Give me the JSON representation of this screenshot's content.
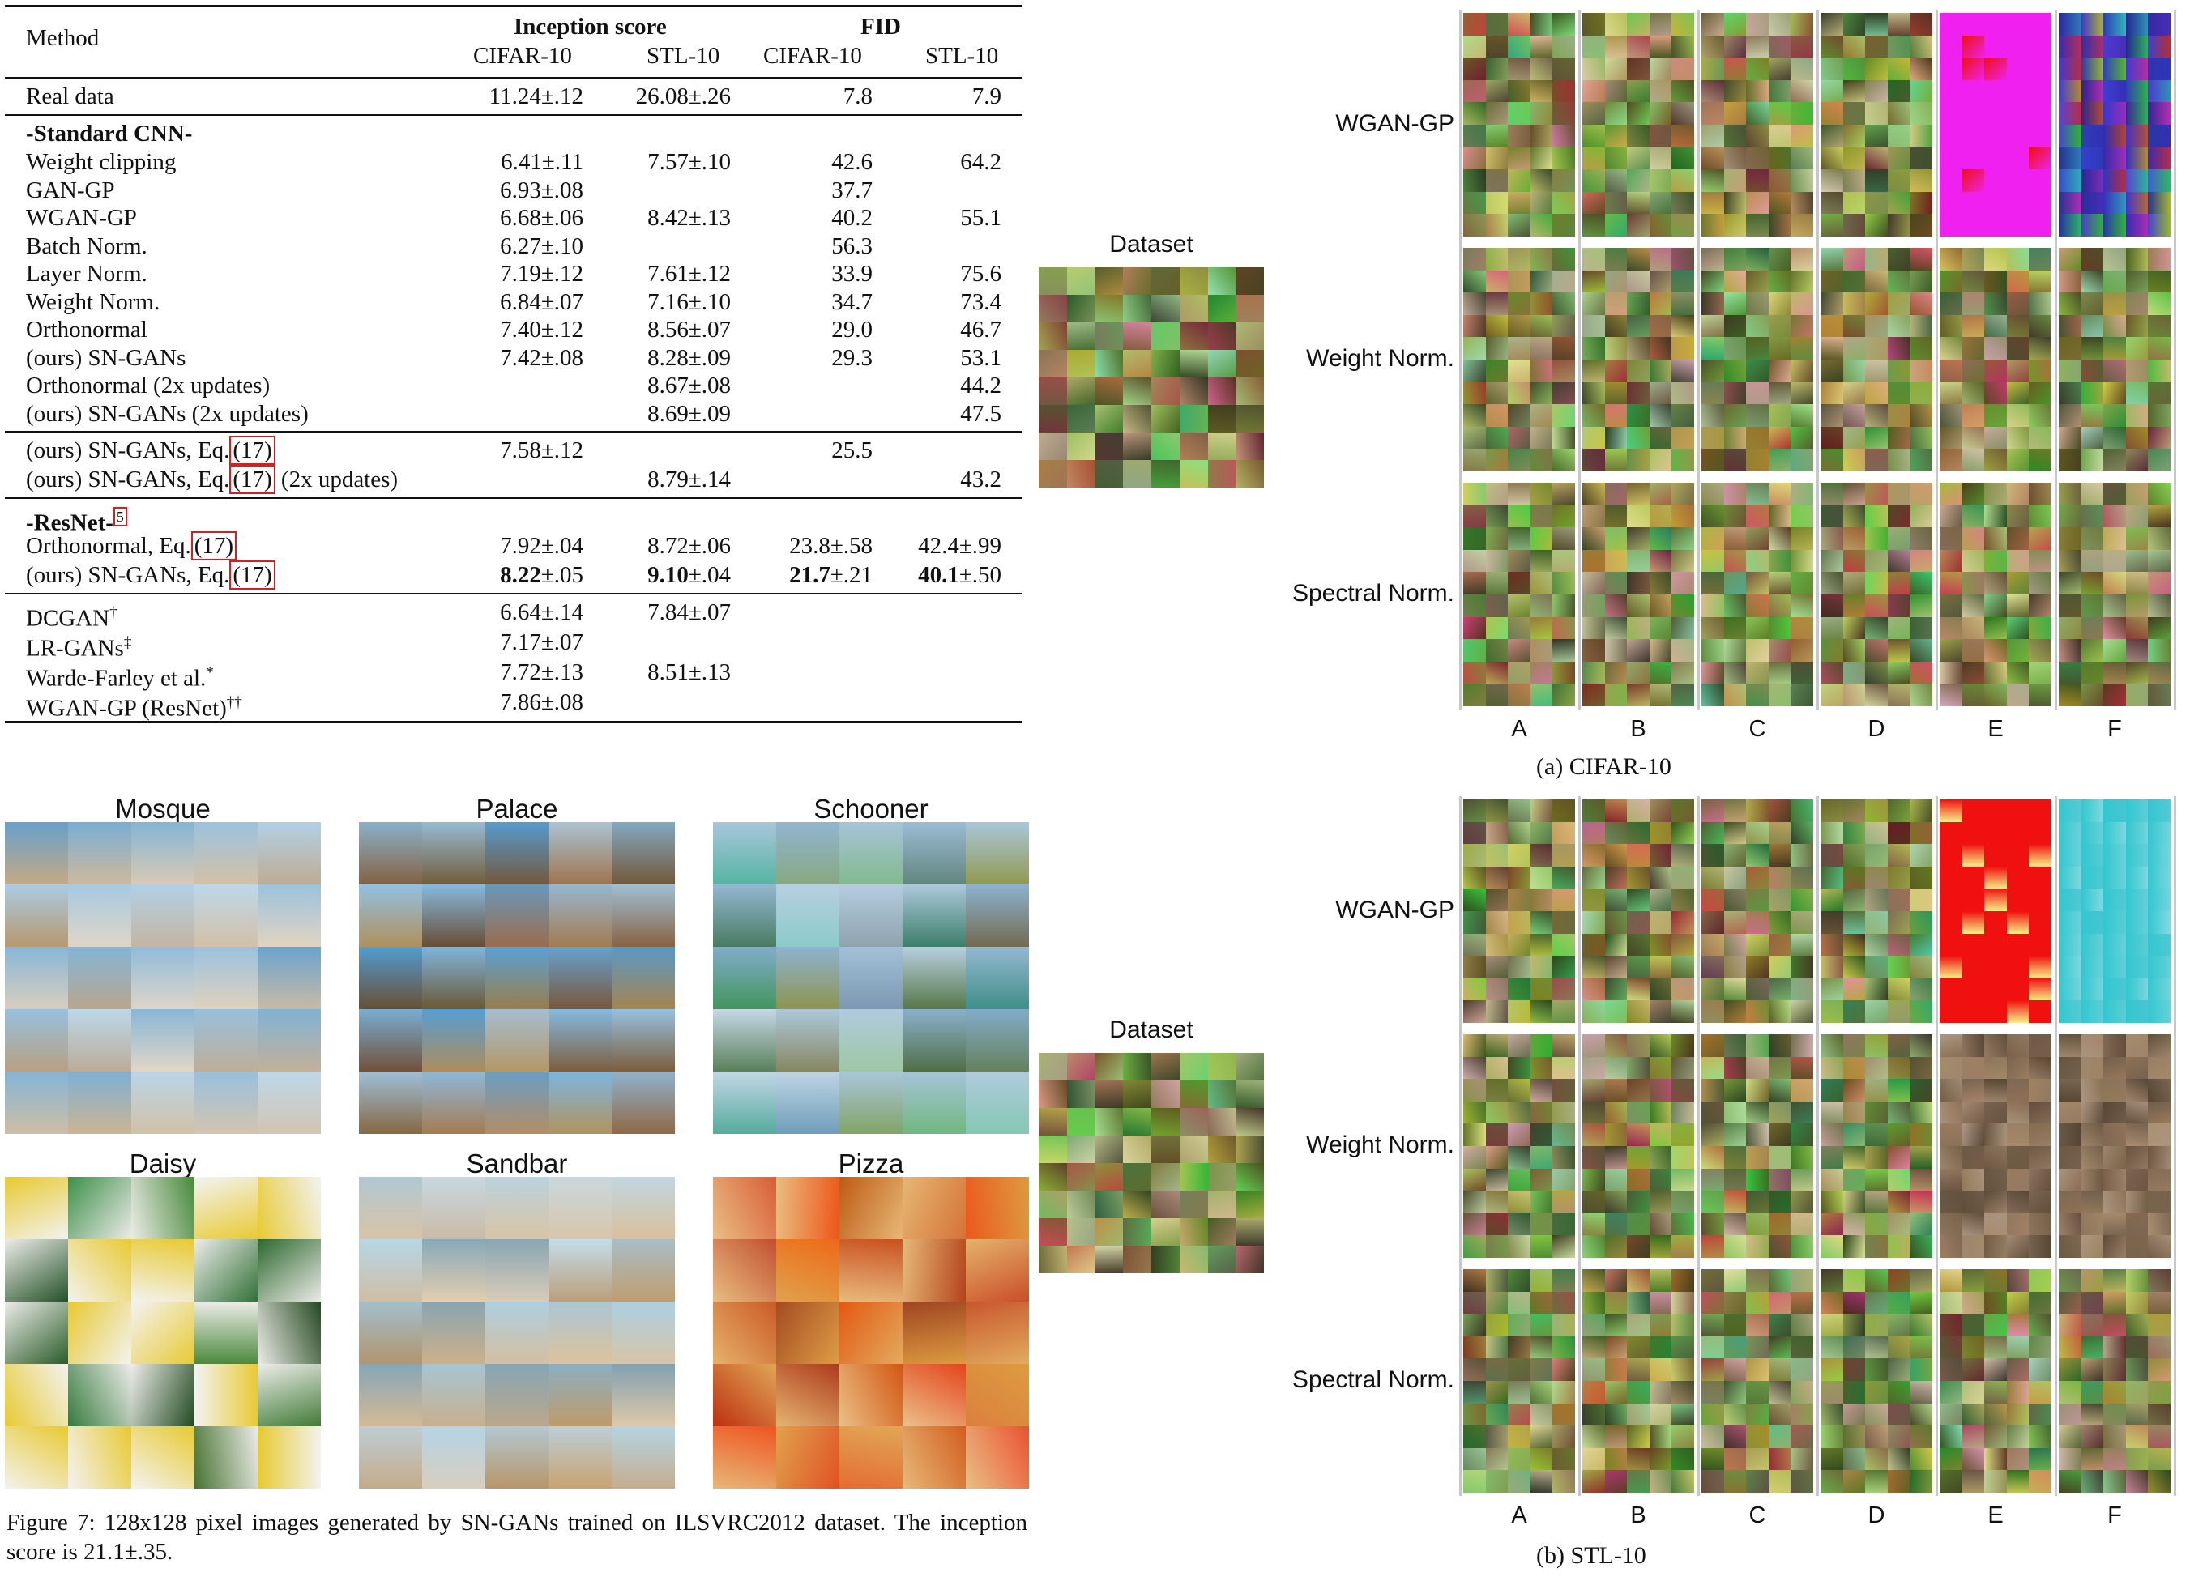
{
  "table": {
    "headers": {
      "method": "Method",
      "inception_score": "Inception score",
      "fid": "FID",
      "cifar10": "CIFAR-10",
      "stl10": "STL-10"
    },
    "real_data": {
      "method": "Real data",
      "is_cifar": "11.24±.12",
      "is_stl": "26.08±.26",
      "fid_cifar": "7.8",
      "fid_stl": "7.9"
    },
    "standard_cnn_title": "-Standard CNN-",
    "standard_cnn_rows": [
      {
        "method": "Weight clipping",
        "is_cifar": "6.41±.11",
        "is_stl": "7.57±.10",
        "fid_cifar": "42.6",
        "fid_stl": "64.2"
      },
      {
        "method": "GAN-GP",
        "is_cifar": "6.93±.08",
        "is_stl": "",
        "fid_cifar": "37.7",
        "fid_stl": ""
      },
      {
        "method": "WGAN-GP",
        "is_cifar": "6.68±.06",
        "is_stl": "8.42±.13",
        "fid_cifar": "40.2",
        "fid_stl": "55.1"
      },
      {
        "method": "Batch Norm.",
        "is_cifar": "6.27±.10",
        "is_stl": "",
        "fid_cifar": "56.3",
        "fid_stl": ""
      },
      {
        "method": "Layer Norm.",
        "is_cifar": "7.19±.12",
        "is_stl": "7.61±.12",
        "fid_cifar": "33.9",
        "fid_stl": "75.6"
      },
      {
        "method": "Weight Norm.",
        "is_cifar": "6.84±.07",
        "is_stl": "7.16±.10",
        "fid_cifar": "34.7",
        "fid_stl": "73.4"
      },
      {
        "method": "Orthonormal",
        "is_cifar": "7.40±.12",
        "is_stl": "8.56±.07",
        "fid_cifar": "29.0",
        "fid_stl": "46.7"
      },
      {
        "method": "(ours) SN-GANs",
        "is_cifar": "7.42±.08",
        "is_stl": "8.28±.09",
        "fid_cifar": "29.3",
        "fid_stl": "53.1"
      },
      {
        "method": "Orthonormal (2x updates)",
        "is_cifar": "",
        "is_stl": "8.67±.08",
        "fid_cifar": "",
        "fid_stl": "44.2"
      },
      {
        "method": "(ours) SN-GANs (2x updates)",
        "is_cifar": "",
        "is_stl": "8.69±.09",
        "fid_cifar": "",
        "fid_stl": "47.5"
      }
    ],
    "eq17_rows": [
      {
        "method_a": "(ours) SN-GANs, Eq.",
        "ref": "(17)",
        "method_b": "",
        "is_cifar": "7.58±.12",
        "is_stl": "",
        "fid_cifar": "25.5",
        "fid_stl": ""
      },
      {
        "method_a": "(ours) SN-GANs, Eq.",
        "ref": "(17)",
        "method_b": " (2x updates)",
        "is_cifar": "",
        "is_stl": "8.79±.14",
        "fid_cifar": "",
        "fid_stl": "43.2"
      }
    ],
    "resnet_title": "-ResNet-",
    "resnet_footnote": "5",
    "resnet_rows": [
      {
        "method_a": "Orthonormal, Eq.",
        "ref": "(17)",
        "is_cifar": "7.92±.04",
        "is_stl": "8.72±.06",
        "fid_cifar": "23.8±.58",
        "fid_stl": "42.4±.99",
        "bold": false
      },
      {
        "method_a": "(ours) SN-GANs, Eq.",
        "ref": "(17)",
        "is_cifar": "8.22±.05",
        "is_stl": "9.10±.04",
        "fid_cifar": "21.7±.21",
        "fid_stl": "40.1±.50",
        "bold": true
      }
    ],
    "other_rows": [
      {
        "method": "DCGAN",
        "sup": "†",
        "is_cifar": "6.64±.14",
        "is_stl": "7.84±.07"
      },
      {
        "method": "LR-GANs",
        "sup": "‡",
        "is_cifar": "7.17±.07",
        "is_stl": ""
      },
      {
        "method": "Warde-Farley et al.",
        "sup": "*",
        "is_cifar": "7.72±.13",
        "is_stl": "8.51±.13"
      },
      {
        "method": "WGAN-GP (ResNet)",
        "sup": "††",
        "is_cifar": "7.86±.08",
        "is_stl": ""
      }
    ]
  },
  "figure7": {
    "classes": [
      "Mosque",
      "Palace",
      "Schooner",
      "Daisy",
      "Sandbar",
      "Pizza"
    ],
    "caption": "Figure 7:   128x128 pixel images generated by SN-GANs trained on ILSVRC2012 dataset.  The inception score is 21.1±.35."
  },
  "right_figure": {
    "dataset_label": "Dataset",
    "row_labels": [
      "WGAN-GP",
      "Weight Norm.",
      "Spectral Norm."
    ],
    "col_labels": [
      "A",
      "B",
      "C",
      "D",
      "E",
      "F"
    ],
    "caption_a": "(a)  CIFAR-10",
    "caption_b": "(b)  STL-10"
  },
  "colors": {
    "rule": "#111111",
    "ref_box": "#d32020",
    "collapse_magenta": "#f020f0",
    "collapse_red": "#f01010",
    "collapse_cyan": "#30c8d0",
    "noise_blue": "#3040c0"
  }
}
